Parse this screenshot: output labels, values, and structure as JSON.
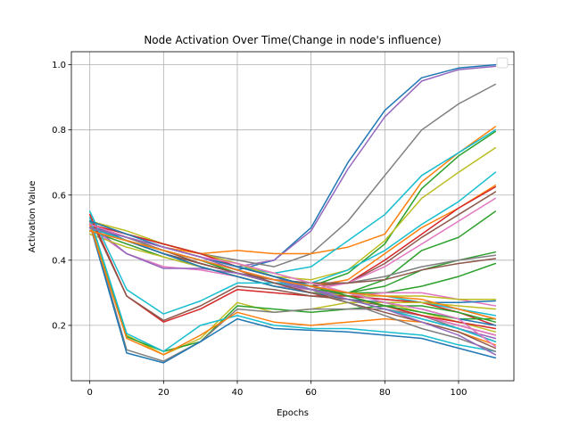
{
  "chart_data": {
    "type": "line",
    "title": "Node Activation Over Time(Change in node's influence)",
    "xlabel": "Epochs",
    "ylabel": "Activation Value",
    "xlim": [
      -5,
      115
    ],
    "ylim": [
      0.03,
      1.04
    ],
    "xticks": [
      0,
      20,
      40,
      60,
      80,
      100
    ],
    "yticks": [
      0.2,
      0.4,
      0.6,
      0.8,
      1.0
    ],
    "xtick_labels": [
      "0",
      "20",
      "40",
      "60",
      "80",
      "100"
    ],
    "ytick_labels": [
      "0.2",
      "0.4",
      "0.6",
      "0.8",
      "1.0"
    ],
    "grid": true,
    "legend": "top-right (empty)",
    "x": [
      0,
      10,
      20,
      30,
      40,
      50,
      60,
      70,
      80,
      90,
      100,
      110
    ],
    "series": [
      {
        "color": "#1f77b4",
        "values": [
          0.51,
          0.46,
          0.43,
          0.4,
          0.37,
          0.4,
          0.5,
          0.7,
          0.86,
          0.96,
          0.99,
          1.0
        ]
      },
      {
        "color": "#9467bd",
        "values": [
          0.5,
          0.47,
          0.44,
          0.41,
          0.38,
          0.4,
          0.49,
          0.68,
          0.84,
          0.95,
          0.985,
          0.995
        ]
      },
      {
        "color": "#7f7f7f",
        "values": [
          0.52,
          0.48,
          0.45,
          0.42,
          0.4,
          0.38,
          0.42,
          0.52,
          0.66,
          0.8,
          0.88,
          0.94
        ]
      },
      {
        "color": "#ff7f0e",
        "values": [
          0.51,
          0.47,
          0.44,
          0.42,
          0.43,
          0.42,
          0.42,
          0.44,
          0.48,
          0.64,
          0.73,
          0.81
        ]
      },
      {
        "color": "#17becf",
        "values": [
          0.5,
          0.47,
          0.44,
          0.41,
          0.38,
          0.36,
          0.38,
          0.46,
          0.54,
          0.66,
          0.73,
          0.8
        ]
      },
      {
        "color": "#2ca02c",
        "values": [
          0.49,
          0.46,
          0.43,
          0.4,
          0.36,
          0.33,
          0.32,
          0.36,
          0.45,
          0.62,
          0.72,
          0.795
        ]
      },
      {
        "color": "#bcbd22",
        "values": [
          0.52,
          0.49,
          0.45,
          0.42,
          0.39,
          0.35,
          0.34,
          0.37,
          0.46,
          0.59,
          0.67,
          0.745
        ]
      },
      {
        "color": "#17becf",
        "values": [
          0.5,
          0.46,
          0.42,
          0.39,
          0.36,
          0.33,
          0.33,
          0.37,
          0.43,
          0.51,
          0.58,
          0.67
        ]
      },
      {
        "color": "#ff7f0e",
        "values": [
          0.51,
          0.47,
          0.43,
          0.4,
          0.37,
          0.34,
          0.32,
          0.34,
          0.42,
          0.5,
          0.56,
          0.63
        ]
      },
      {
        "color": "#d62728",
        "values": [
          0.5,
          0.46,
          0.42,
          0.39,
          0.36,
          0.33,
          0.32,
          0.33,
          0.4,
          0.48,
          0.56,
          0.625
        ]
      },
      {
        "color": "#8c564b",
        "values": [
          0.51,
          0.47,
          0.43,
          0.39,
          0.36,
          0.34,
          0.32,
          0.33,
          0.39,
          0.47,
          0.54,
          0.61
        ]
      },
      {
        "color": "#e377c2",
        "values": [
          0.49,
          0.45,
          0.41,
          0.38,
          0.35,
          0.32,
          0.31,
          0.33,
          0.38,
          0.45,
          0.52,
          0.59
        ]
      },
      {
        "color": "#2ca02c",
        "values": [
          0.5,
          0.46,
          0.42,
          0.38,
          0.35,
          0.32,
          0.3,
          0.3,
          0.34,
          0.43,
          0.47,
          0.55
        ]
      },
      {
        "color": "#2ca02c",
        "values": [
          0.5,
          0.46,
          0.43,
          0.4,
          0.36,
          0.33,
          0.31,
          0.3,
          0.32,
          0.37,
          0.4,
          0.425
        ]
      },
      {
        "color": "#7f7f7f",
        "values": [
          0.51,
          0.47,
          0.43,
          0.4,
          0.37,
          0.34,
          0.33,
          0.33,
          0.35,
          0.38,
          0.4,
          0.415
        ]
      },
      {
        "color": "#8c564b",
        "values": [
          0.5,
          0.46,
          0.42,
          0.39,
          0.36,
          0.34,
          0.33,
          0.33,
          0.34,
          0.37,
          0.39,
          0.405
        ]
      },
      {
        "color": "#2ca02c",
        "values": [
          0.49,
          0.45,
          0.41,
          0.38,
          0.35,
          0.32,
          0.3,
          0.3,
          0.3,
          0.32,
          0.35,
          0.39
        ]
      },
      {
        "color": "#e377c2",
        "values": [
          0.5,
          0.42,
          0.38,
          0.37,
          0.35,
          0.32,
          0.3,
          0.29,
          0.3,
          0.3,
          0.28,
          0.26
        ]
      },
      {
        "color": "#9467bd",
        "values": [
          0.51,
          0.42,
          0.375,
          0.375,
          0.36,
          0.33,
          0.31,
          0.29,
          0.28,
          0.27,
          0.25,
          0.22
        ]
      },
      {
        "color": "#bcbd22",
        "values": [
          0.48,
          0.44,
          0.41,
          0.38,
          0.35,
          0.32,
          0.3,
          0.29,
          0.29,
          0.29,
          0.28,
          0.28
        ]
      },
      {
        "color": "#1f77b4",
        "values": [
          0.5,
          0.46,
          0.42,
          0.38,
          0.35,
          0.32,
          0.3,
          0.28,
          0.27,
          0.27,
          0.27,
          0.275
        ]
      },
      {
        "color": "#17becf",
        "values": [
          0.55,
          0.31,
          0.235,
          0.275,
          0.33,
          0.33,
          0.32,
          0.3,
          0.29,
          0.27,
          0.25,
          0.23
        ]
      },
      {
        "color": "#d62728",
        "values": [
          0.54,
          0.29,
          0.21,
          0.25,
          0.31,
          0.3,
          0.29,
          0.29,
          0.28,
          0.27,
          0.24,
          0.2
        ]
      },
      {
        "color": "#8c564b",
        "values": [
          0.53,
          0.29,
          0.215,
          0.26,
          0.32,
          0.31,
          0.29,
          0.28,
          0.26,
          0.23,
          0.2,
          0.17
        ]
      },
      {
        "color": "#bcbd22",
        "values": [
          0.52,
          0.17,
          0.11,
          0.16,
          0.27,
          0.24,
          0.25,
          0.27,
          0.27,
          0.27,
          0.26,
          0.25
        ]
      },
      {
        "color": "#2ca02c",
        "values": [
          0.51,
          0.165,
          0.12,
          0.15,
          0.26,
          0.25,
          0.24,
          0.25,
          0.26,
          0.26,
          0.24,
          0.21
        ]
      },
      {
        "color": "#7f7f7f",
        "values": [
          0.52,
          0.125,
          0.09,
          0.15,
          0.25,
          0.24,
          0.25,
          0.25,
          0.25,
          0.23,
          0.19,
          0.15
        ]
      },
      {
        "color": "#1f77b4",
        "values": [
          0.51,
          0.115,
          0.085,
          0.15,
          0.22,
          0.19,
          0.185,
          0.18,
          0.17,
          0.16,
          0.13,
          0.1
        ]
      },
      {
        "color": "#17becf",
        "values": [
          0.53,
          0.175,
          0.12,
          0.2,
          0.23,
          0.2,
          0.19,
          0.19,
          0.18,
          0.17,
          0.14,
          0.12
        ]
      },
      {
        "color": "#ff7f0e",
        "values": [
          0.51,
          0.16,
          0.11,
          0.17,
          0.24,
          0.21,
          0.2,
          0.21,
          0.22,
          0.21,
          0.18,
          0.14
        ]
      },
      {
        "color": "#e377c2",
        "values": [
          0.5,
          0.47,
          0.44,
          0.41,
          0.38,
          0.35,
          0.32,
          0.29,
          0.26,
          0.23,
          0.2,
          0.17
        ]
      },
      {
        "color": "#9467bd",
        "values": [
          0.51,
          0.47,
          0.44,
          0.41,
          0.38,
          0.35,
          0.31,
          0.28,
          0.25,
          0.22,
          0.19,
          0.16
        ]
      },
      {
        "color": "#17becf",
        "values": [
          0.5,
          0.46,
          0.43,
          0.4,
          0.37,
          0.34,
          0.31,
          0.28,
          0.25,
          0.22,
          0.19,
          0.15
        ]
      },
      {
        "color": "#bcbd22",
        "values": [
          0.52,
          0.48,
          0.45,
          0.42,
          0.39,
          0.36,
          0.33,
          0.3,
          0.27,
          0.24,
          0.21,
          0.18
        ]
      },
      {
        "color": "#8c564b",
        "values": [
          0.5,
          0.47,
          0.44,
          0.41,
          0.37,
          0.33,
          0.3,
          0.27,
          0.24,
          0.21,
          0.18,
          0.13
        ]
      },
      {
        "color": "#7f7f7f",
        "values": [
          0.49,
          0.46,
          0.43,
          0.4,
          0.37,
          0.34,
          0.31,
          0.27,
          0.23,
          0.19,
          0.16,
          0.12
        ]
      },
      {
        "color": "#d62728",
        "values": [
          0.51,
          0.48,
          0.45,
          0.42,
          0.38,
          0.35,
          0.32,
          0.29,
          0.26,
          0.23,
          0.21,
          0.19
        ]
      },
      {
        "color": "#2ca02c",
        "values": [
          0.5,
          0.47,
          0.44,
          0.41,
          0.38,
          0.35,
          0.32,
          0.29,
          0.26,
          0.24,
          0.22,
          0.22
        ]
      },
      {
        "color": "#1f77b4",
        "values": [
          0.52,
          0.48,
          0.44,
          0.41,
          0.38,
          0.35,
          0.32,
          0.3,
          0.27,
          0.25,
          0.22,
          0.2
        ]
      },
      {
        "color": "#e377c2",
        "values": [
          0.51,
          0.47,
          0.44,
          0.41,
          0.39,
          0.36,
          0.33,
          0.3,
          0.27,
          0.25,
          0.22,
          0.135
        ]
      },
      {
        "color": "#9467bd",
        "values": [
          0.5,
          0.47,
          0.44,
          0.41,
          0.37,
          0.34,
          0.31,
          0.28,
          0.25,
          0.21,
          0.17,
          0.11
        ]
      },
      {
        "color": "#ff7f0e",
        "values": [
          0.49,
          0.46,
          0.43,
          0.4,
          0.37,
          0.34,
          0.32,
          0.3,
          0.29,
          0.28,
          0.25,
          0.22
        ]
      }
    ]
  }
}
